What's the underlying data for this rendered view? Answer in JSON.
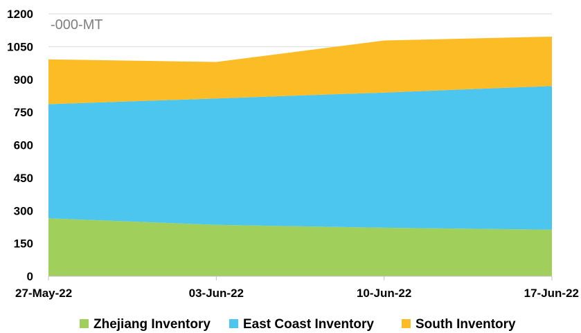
{
  "chart_data": {
    "type": "area",
    "stacked": true,
    "unit_label": "-000-MT",
    "categories": [
      "27-May-22",
      "03-Jun-22",
      "10-Jun-22",
      "17-Jun-22"
    ],
    "ylim": [
      0,
      1200
    ],
    "yticks": [
      0,
      150,
      300,
      450,
      600,
      750,
      900,
      1050,
      1200
    ],
    "grid": true,
    "legend_position": "bottom",
    "series": [
      {
        "name": "Zhejiang Inventory",
        "color": "#a0cf5c",
        "values": [
          265,
          235,
          222,
          213
        ]
      },
      {
        "name": "East Coast Inventory",
        "color": "#4dc6ef",
        "values": [
          522,
          578,
          618,
          657
        ]
      },
      {
        "name": "South Inventory",
        "color": "#fcbc25",
        "values": [
          205,
          167,
          238,
          226
        ]
      }
    ]
  }
}
